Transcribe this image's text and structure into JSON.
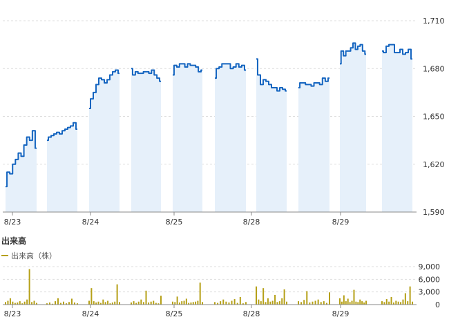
{
  "colors": {
    "price_line": "#1565c0",
    "price_fill": "#e6f0fa",
    "volume_bar": "#b5a017",
    "grid": "#dddddd",
    "axis": "#888888"
  },
  "volume_section": {
    "title": "出来高",
    "legend_label": "出来高（株）"
  },
  "chart_data": [
    {
      "type": "line",
      "title": "",
      "x_tick_labels": [
        "8/23",
        "8/24",
        "8/25",
        "8/28",
        "8/29"
      ],
      "y_tick_labels": [
        "1,710",
        "1,680",
        "1,650",
        "1,620",
        "1,590"
      ],
      "ylim": [
        1590,
        1710
      ],
      "grid": true,
      "sessions": [
        {
          "name": "8/23 AM",
          "values": [
            1606,
            1615,
            1614,
            1620,
            1623,
            1627,
            1625,
            1632,
            1637,
            1635,
            1641,
            1630
          ]
        },
        {
          "name": "8/23 PM",
          "values": [
            1635,
            1637,
            1638,
            1639,
            1640,
            1639,
            1641,
            1642,
            1643,
            1644,
            1646,
            1642
          ]
        },
        {
          "name": "8/24 AM",
          "values": [
            1655,
            1661,
            1665,
            1670,
            1674,
            1673,
            1671,
            1673,
            1676,
            1678,
            1679,
            1677
          ]
        },
        {
          "name": "8/24 PM",
          "values": [
            1680,
            1676,
            1678,
            1677,
            1677,
            1678,
            1678,
            1677,
            1679,
            1676,
            1674,
            1672
          ]
        },
        {
          "name": "8/25 AM",
          "values": [
            1676,
            1682,
            1681,
            1683,
            1683,
            1681,
            1683,
            1682,
            1682,
            1681,
            1678,
            1679
          ]
        },
        {
          "name": "8/25 PM",
          "values": [
            1674,
            1680,
            1681,
            1683,
            1683,
            1683,
            1680,
            1681,
            1683,
            1681,
            1682,
            1679
          ]
        },
        {
          "name": "8/28 AM",
          "values": [
            1686,
            1676,
            1670,
            1673,
            1672,
            1670,
            1668,
            1668,
            1666,
            1668,
            1667,
            1666
          ]
        },
        {
          "name": "8/28 PM",
          "values": [
            1668,
            1671,
            1671,
            1670,
            1670,
            1669,
            1671,
            1671,
            1670,
            1674,
            1672,
            1674
          ]
        },
        {
          "name": "8/29 AM",
          "values": [
            1683,
            1691,
            1688,
            1691,
            1691,
            1693,
            1696,
            1692,
            1694,
            1695,
            1691,
            1689
          ]
        },
        {
          "name": "8/29 PM",
          "values": [
            1691,
            1690,
            1694,
            1695,
            1695,
            1690,
            1690,
            1692,
            1689,
            1690,
            1692,
            1686
          ]
        }
      ]
    },
    {
      "type": "bar",
      "title": "出来高",
      "series": [
        {
          "name": "出来高（株）"
        }
      ],
      "y_tick_labels": [
        "9,000",
        "6,000",
        "3,000",
        "0"
      ],
      "ylim": [
        0,
        9000
      ],
      "x_tick_labels": [
        "8/23",
        "8/24",
        "8/25",
        "8/28",
        "8/29"
      ],
      "sessions": [
        [
          600,
          900,
          1500,
          700,
          400,
          500,
          800,
          300,
          700,
          1200,
          8400,
          600,
          900,
          400
        ],
        [
          300,
          500,
          200,
          800,
          1500,
          400,
          700,
          300,
          600,
          1400,
          500,
          300
        ],
        [
          900,
          3900,
          800,
          500,
          700,
          400,
          1200,
          600,
          900,
          300,
          500,
          700,
          4800,
          600
        ],
        [
          500,
          800,
          400,
          700,
          1200,
          600,
          3300,
          500,
          700,
          900,
          400,
          300,
          2100
        ],
        [
          700,
          600,
          1900,
          500,
          800,
          900,
          1400,
          400,
          500,
          600,
          700,
          900,
          5200,
          600
        ],
        [
          600,
          400,
          800,
          1200,
          700,
          500,
          900,
          1300,
          400,
          1800,
          300,
          600
        ],
        [
          4300,
          1200,
          800,
          3900,
          600,
          1500,
          700,
          900,
          2300,
          600,
          800,
          1500,
          3600,
          700
        ],
        [
          800,
          600,
          1100,
          3200,
          500,
          700,
          900,
          1200,
          600,
          800,
          400,
          2900
        ],
        [
          1500,
          700,
          2200,
          800,
          1400,
          600,
          900,
          3500,
          700,
          600,
          1200,
          800,
          500,
          900
        ],
        [
          800,
          600,
          1300,
          700,
          1800,
          500,
          900,
          700,
          600,
          1200,
          2700,
          800,
          4300,
          700
        ]
      ]
    }
  ]
}
